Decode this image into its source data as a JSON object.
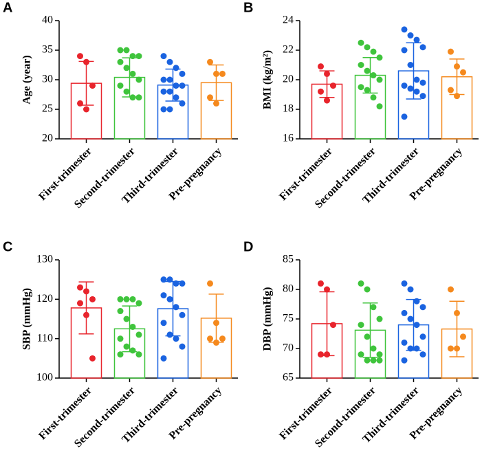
{
  "chart_data": [
    {
      "type": "bar",
      "panel": "A",
      "ylabel": "Age (year)",
      "categories": [
        "First-trimester",
        "Second-trimester",
        "Third-trimester",
        "Pre-pregnancy"
      ],
      "colors": [
        "#e8242c",
        "#3fc43c",
        "#1a63e0",
        "#f5891d"
      ],
      "values": [
        29.4,
        30.4,
        29.1,
        29.5
      ],
      "errors": [
        3.7,
        3.3,
        2.7,
        3.0
      ],
      "points": [
        [
          34,
          33,
          29,
          26,
          25
        ],
        [
          35,
          35,
          34,
          34,
          33,
          32,
          31,
          30,
          29,
          28,
          27,
          27
        ],
        [
          34,
          33,
          32,
          31,
          30,
          30,
          29,
          29,
          28,
          28,
          27,
          26,
          25,
          25
        ],
        [
          33,
          31,
          31,
          27,
          26
        ]
      ],
      "ylim": [
        20,
        40
      ],
      "yticks": [
        20,
        25,
        30,
        35,
        40
      ]
    },
    {
      "type": "bar",
      "panel": "B",
      "ylabel": "BMI (kg/m²)",
      "categories": [
        "First-trimester",
        "Second-trimester",
        "Third-trimester",
        "Pre-pregnancy"
      ],
      "colors": [
        "#e8242c",
        "#3fc43c",
        "#1a63e0",
        "#f5891d"
      ],
      "values": [
        19.7,
        20.3,
        20.6,
        20.2
      ],
      "errors": [
        0.9,
        1.2,
        1.9,
        1.2
      ],
      "points": [
        [
          20.9,
          20.4,
          19.6,
          19.2,
          18.6
        ],
        [
          22.5,
          22.2,
          21.9,
          21.5,
          21.0,
          20.6,
          20.3,
          20.0,
          19.5,
          19.3,
          18.8,
          18.2
        ],
        [
          23.4,
          23.0,
          22.7,
          22.2,
          22.0,
          21.0,
          20.0,
          19.8,
          19.6,
          19.4,
          19.2,
          18.9,
          17.5
        ],
        [
          21.9,
          20.9,
          20.5,
          19.3,
          18.9
        ]
      ],
      "ylim": [
        16,
        24
      ],
      "yticks": [
        16,
        18,
        20,
        22,
        24
      ]
    },
    {
      "type": "bar",
      "panel": "C",
      "ylabel": "SBP (mmHg)",
      "categories": [
        "First-trimester",
        "Second-trimester",
        "Third-trimester",
        "Pre-pregnancy"
      ],
      "colors": [
        "#e8242c",
        "#3fc43c",
        "#1a63e0",
        "#f5891d"
      ],
      "values": [
        117.8,
        112.5,
        117.6,
        115.2
      ],
      "errors": [
        6.6,
        5.8,
        6.9,
        6.1
      ],
      "points": [
        [
          123,
          122,
          120,
          119,
          116,
          105
        ],
        [
          120,
          120,
          120,
          119,
          117,
          115,
          113,
          111,
          110,
          108,
          107,
          106,
          106
        ],
        [
          125,
          125,
          124,
          124,
          121,
          120,
          118,
          116,
          114,
          111,
          110,
          108,
          105
        ],
        [
          124,
          114,
          110,
          110,
          109
        ]
      ],
      "ylim": [
        100,
        130
      ],
      "yticks": [
        100,
        110,
        120,
        130
      ]
    },
    {
      "type": "bar",
      "panel": "D",
      "ylabel": "DBP (mmHg)",
      "categories": [
        "First-trimester",
        "Second-trimester",
        "Third-trimester",
        "Pre-pregnancy"
      ],
      "colors": [
        "#e8242c",
        "#3fc43c",
        "#1a63e0",
        "#f5891d"
      ],
      "values": [
        74.2,
        73.1,
        74.0,
        73.3
      ],
      "errors": [
        5.4,
        4.6,
        4.3,
        4.7
      ],
      "points": [
        [
          81,
          80,
          74,
          69,
          69
        ],
        [
          81,
          80,
          77,
          75,
          74,
          72,
          70,
          69,
          69,
          68,
          68,
          68
        ],
        [
          81,
          80,
          78,
          77,
          76,
          75,
          74,
          72,
          71,
          70,
          70,
          69,
          68
        ],
        [
          80,
          76,
          72,
          70,
          70
        ]
      ],
      "ylim": [
        65,
        85
      ],
      "yticks": [
        65,
        70,
        75,
        80,
        85
      ]
    }
  ]
}
